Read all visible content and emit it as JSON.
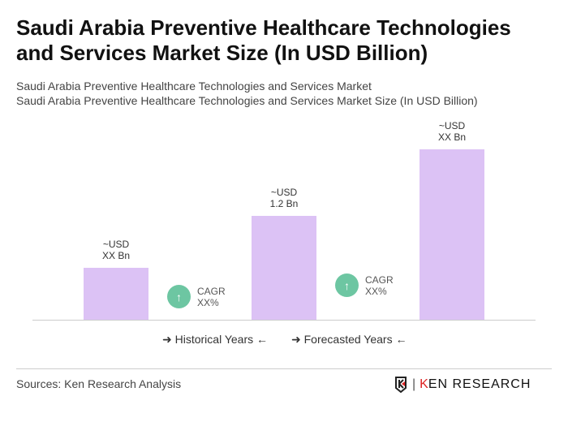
{
  "title": "Saudi Arabia Preventive Healthcare Technologies and Services Market Size (In USD Billion)",
  "subtitle_1": "Saudi Arabia Preventive Healthcare Technologies and Services Market",
  "subtitle_2": "Saudi Arabia Preventive Healthcare Technologies and Services Market Size (In USD Billion)",
  "chart_data": {
    "type": "bar",
    "categories": [
      "",
      "",
      ""
    ],
    "values": [
      0.6,
      1.2,
      1.97
    ],
    "data_labels": [
      [
        "~USD",
        "XX Bn"
      ],
      [
        "~USD",
        "1.2 Bn"
      ],
      [
        "~USD",
        "XX Bn"
      ]
    ],
    "bar_color": "#dcc2f5",
    "cagr": [
      {
        "label": "CAGR",
        "value": "XX%"
      },
      {
        "label": "CAGR",
        "value": "XX%"
      }
    ],
    "cagr_color": "#6dc6a2",
    "legend": [
      "Historical Years",
      "Forecasted Years"
    ],
    "grid": false
  },
  "footer": {
    "source": "Sources: Ken Research Analysis",
    "logo_text": "KEN RESEARCH"
  }
}
